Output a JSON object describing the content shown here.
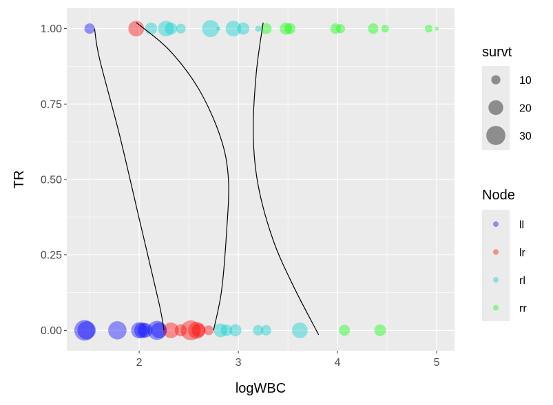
{
  "chart_data": {
    "type": "scatter",
    "title": "",
    "xlabel": "logWBC",
    "ylabel": "TR",
    "xlim": [
      1.27,
      5.18
    ],
    "ylim": [
      -0.0675,
      1.0675
    ],
    "x_ticks": [
      "2",
      "3",
      "4",
      "5"
    ],
    "x_tick_values": [
      2,
      3,
      4,
      5
    ],
    "y_ticks": [
      "0.00",
      "0.25",
      "0.50",
      "0.75",
      "1.00"
    ],
    "y_tick_values": [
      0,
      0.25,
      0.5,
      0.75,
      1
    ],
    "grid": true,
    "panel_background": "#ebebeb",
    "grid_color": "#ffffff",
    "size_legend": {
      "title": "survt",
      "entries": [
        {
          "label": "10",
          "value": 10
        },
        {
          "label": "20",
          "value": 20
        },
        {
          "label": "30",
          "value": 30
        }
      ]
    },
    "color_legend": {
      "title": "Node",
      "entries": [
        {
          "label": "ll",
          "color": "#0000ff"
        },
        {
          "label": "lr",
          "color": "#ff0000"
        },
        {
          "label": "rl",
          "color": "#00cccc"
        },
        {
          "label": "rr",
          "color": "#00ff00"
        }
      ]
    },
    "series": [
      {
        "name": "ll",
        "color": "#0000ff",
        "points": [
          {
            "x": 1.5,
            "y": 1,
            "survt": 12
          },
          {
            "x": 1.45,
            "y": 0,
            "survt": 34
          },
          {
            "x": 1.47,
            "y": 0,
            "survt": 28
          },
          {
            "x": 1.78,
            "y": 0,
            "survt": 28
          },
          {
            "x": 2.0,
            "y": 0,
            "survt": 23
          },
          {
            "x": 2.03,
            "y": 0,
            "survt": 22
          },
          {
            "x": 2.06,
            "y": 0,
            "survt": 20
          },
          {
            "x": 2.18,
            "y": 0,
            "survt": 30
          },
          {
            "x": 2.2,
            "y": 0,
            "survt": 22
          }
        ]
      },
      {
        "name": "lr",
        "color": "#ff0000",
        "points": [
          {
            "x": 1.97,
            "y": 1,
            "survt": 22
          },
          {
            "x": 2.32,
            "y": 0,
            "survt": 22
          },
          {
            "x": 2.42,
            "y": 0,
            "survt": 15
          },
          {
            "x": 2.52,
            "y": 0,
            "survt": 32
          },
          {
            "x": 2.58,
            "y": 0,
            "survt": 25
          },
          {
            "x": 2.6,
            "y": 0,
            "survt": 18
          },
          {
            "x": 2.7,
            "y": 0,
            "survt": 11
          }
        ]
      },
      {
        "name": "rl",
        "color": "#00cccc",
        "points": [
          {
            "x": 2.12,
            "y": 1,
            "survt": 15
          },
          {
            "x": 2.27,
            "y": 1,
            "survt": 22
          },
          {
            "x": 2.32,
            "y": 1,
            "survt": 15
          },
          {
            "x": 2.42,
            "y": 1,
            "survt": 11
          },
          {
            "x": 2.72,
            "y": 1,
            "survt": 25
          },
          {
            "x": 2.8,
            "y": 1,
            "survt": 4
          },
          {
            "x": 2.95,
            "y": 1,
            "survt": 22
          },
          {
            "x": 3.05,
            "y": 1,
            "survt": 15
          },
          {
            "x": 3.2,
            "y": 1,
            "survt": 6
          },
          {
            "x": 2.82,
            "y": 0,
            "survt": 18
          },
          {
            "x": 2.88,
            "y": 0,
            "survt": 14
          },
          {
            "x": 2.97,
            "y": 0,
            "survt": 15
          },
          {
            "x": 3.2,
            "y": 0,
            "survt": 12
          },
          {
            "x": 3.28,
            "y": 0,
            "survt": 12
          },
          {
            "x": 3.62,
            "y": 0,
            "survt": 22
          }
        ]
      },
      {
        "name": "rr",
        "color": "#00ff00",
        "points": [
          {
            "x": 3.28,
            "y": 1,
            "survt": 13
          },
          {
            "x": 3.48,
            "y": 1,
            "survt": 15
          },
          {
            "x": 3.52,
            "y": 1,
            "survt": 13
          },
          {
            "x": 3.98,
            "y": 1,
            "survt": 12
          },
          {
            "x": 4.03,
            "y": 1,
            "survt": 10
          },
          {
            "x": 4.36,
            "y": 1,
            "survt": 12
          },
          {
            "x": 4.48,
            "y": 1,
            "survt": 8
          },
          {
            "x": 4.92,
            "y": 1,
            "survt": 8
          },
          {
            "x": 5.0,
            "y": 1,
            "survt": 4
          },
          {
            "x": 4.07,
            "y": 0,
            "survt": 13
          },
          {
            "x": 4.43,
            "y": 0,
            "survt": 14
          }
        ]
      }
    ],
    "fitted_curves": [
      {
        "node": "ll",
        "points": [
          [
            1.55,
            1.0
          ],
          [
            1.6,
            0.9
          ],
          [
            1.8,
            0.65
          ],
          [
            2.0,
            0.37
          ],
          [
            2.2,
            0.09
          ],
          [
            2.25,
            0.0
          ]
        ]
      },
      {
        "node": "lr",
        "points": [
          [
            1.97,
            1.02
          ],
          [
            2.3,
            0.93
          ],
          [
            2.6,
            0.8
          ],
          [
            2.82,
            0.64
          ],
          [
            2.9,
            0.5
          ],
          [
            2.88,
            0.32
          ],
          [
            2.83,
            0.13
          ],
          [
            2.75,
            0.0
          ]
        ]
      },
      {
        "node": "rl",
        "points": [
          [
            3.25,
            1.02
          ],
          [
            3.18,
            0.85
          ],
          [
            3.15,
            0.65
          ],
          [
            3.2,
            0.48
          ],
          [
            3.35,
            0.3
          ],
          [
            3.55,
            0.15
          ],
          [
            3.81,
            -0.015
          ]
        ]
      }
    ]
  }
}
